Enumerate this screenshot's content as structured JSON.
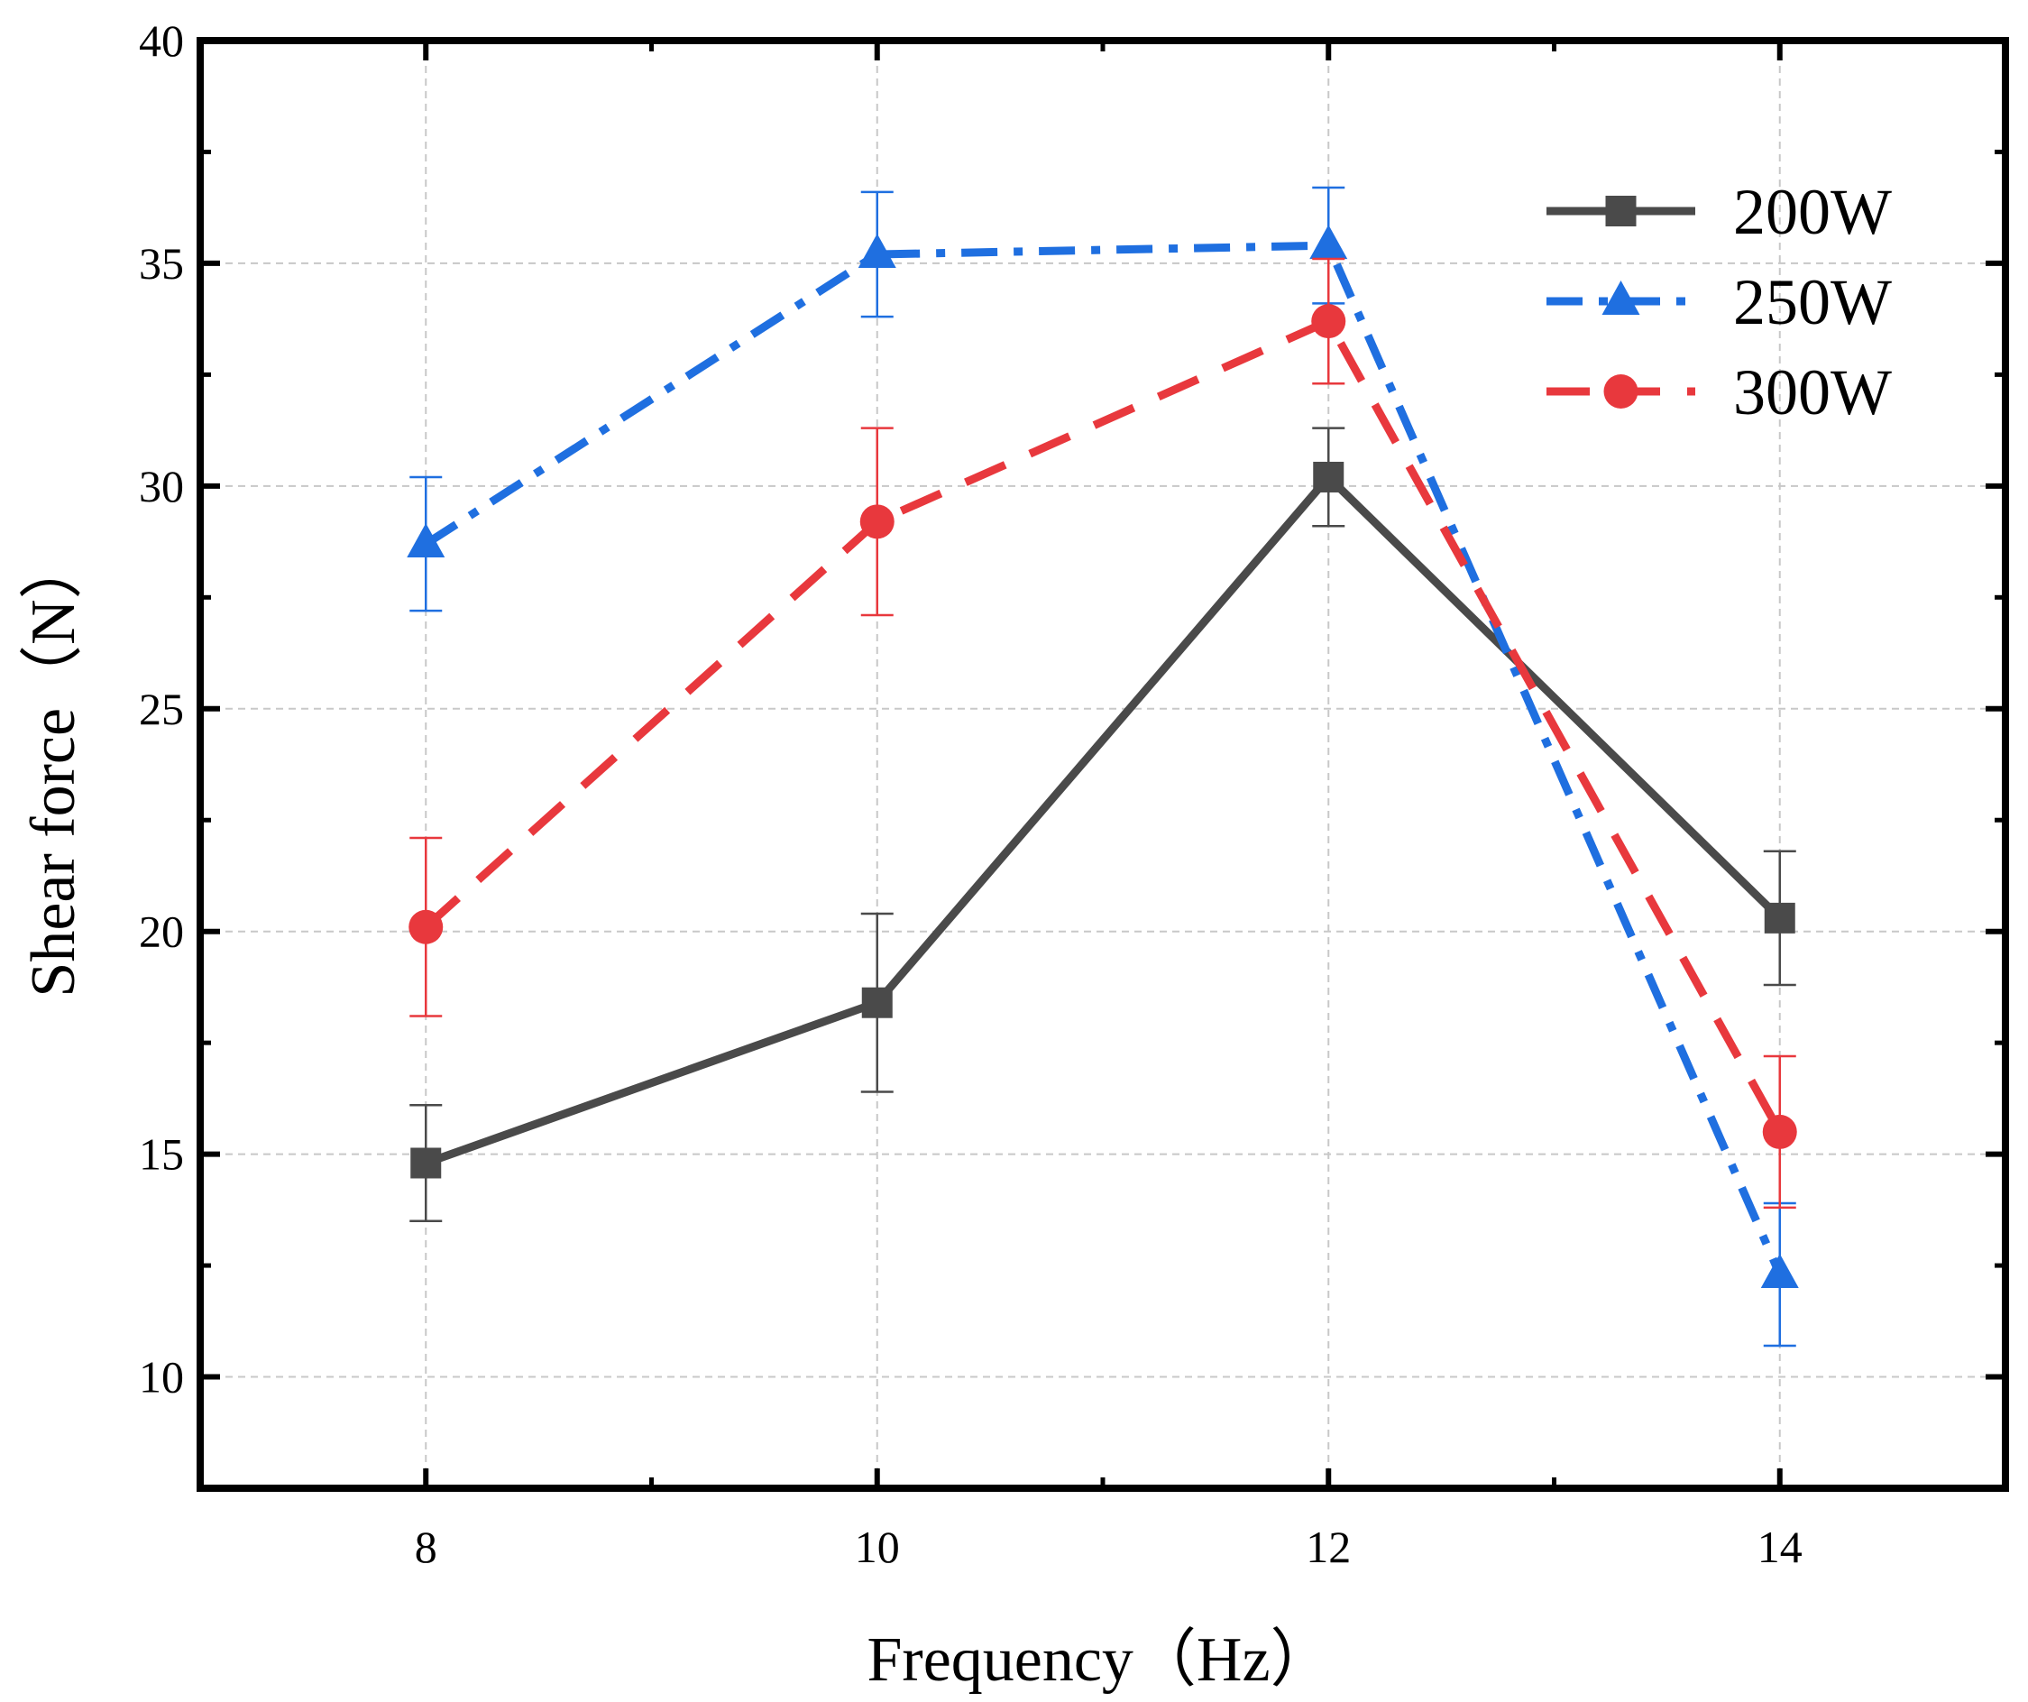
{
  "chart_data": {
    "type": "line",
    "title": "",
    "xlabel": "Frequency（Hz）",
    "ylabel": "Shear force（N）",
    "x": [
      8,
      10,
      12,
      14
    ],
    "xlim": [
      7,
      15
    ],
    "ylim": [
      7.5,
      40
    ],
    "xticks": [
      "8",
      "10",
      "12",
      "14"
    ],
    "yticks": [
      "10",
      "15",
      "20",
      "25",
      "30",
      "35",
      "40"
    ],
    "grid": true,
    "legend_position": "top-right",
    "series": [
      {
        "name": "200W",
        "color": "#4a4a4a",
        "line_style": "solid",
        "marker": "square",
        "values": [
          14.8,
          18.4,
          30.2,
          20.3
        ],
        "errors": [
          1.3,
          2.0,
          1.1,
          1.5
        ]
      },
      {
        "name": "250W",
        "color": "#1f6fe0",
        "line_style": "dash-dot",
        "marker": "triangle",
        "values": [
          28.7,
          35.2,
          35.4,
          12.3
        ],
        "errors": [
          1.5,
          1.4,
          1.3,
          1.6
        ]
      },
      {
        "name": "300W",
        "color": "#e8383d",
        "line_style": "dashed",
        "marker": "circle",
        "values": [
          20.1,
          29.2,
          33.7,
          15.5
        ],
        "errors": [
          2.0,
          2.1,
          1.4,
          1.7
        ]
      }
    ]
  }
}
